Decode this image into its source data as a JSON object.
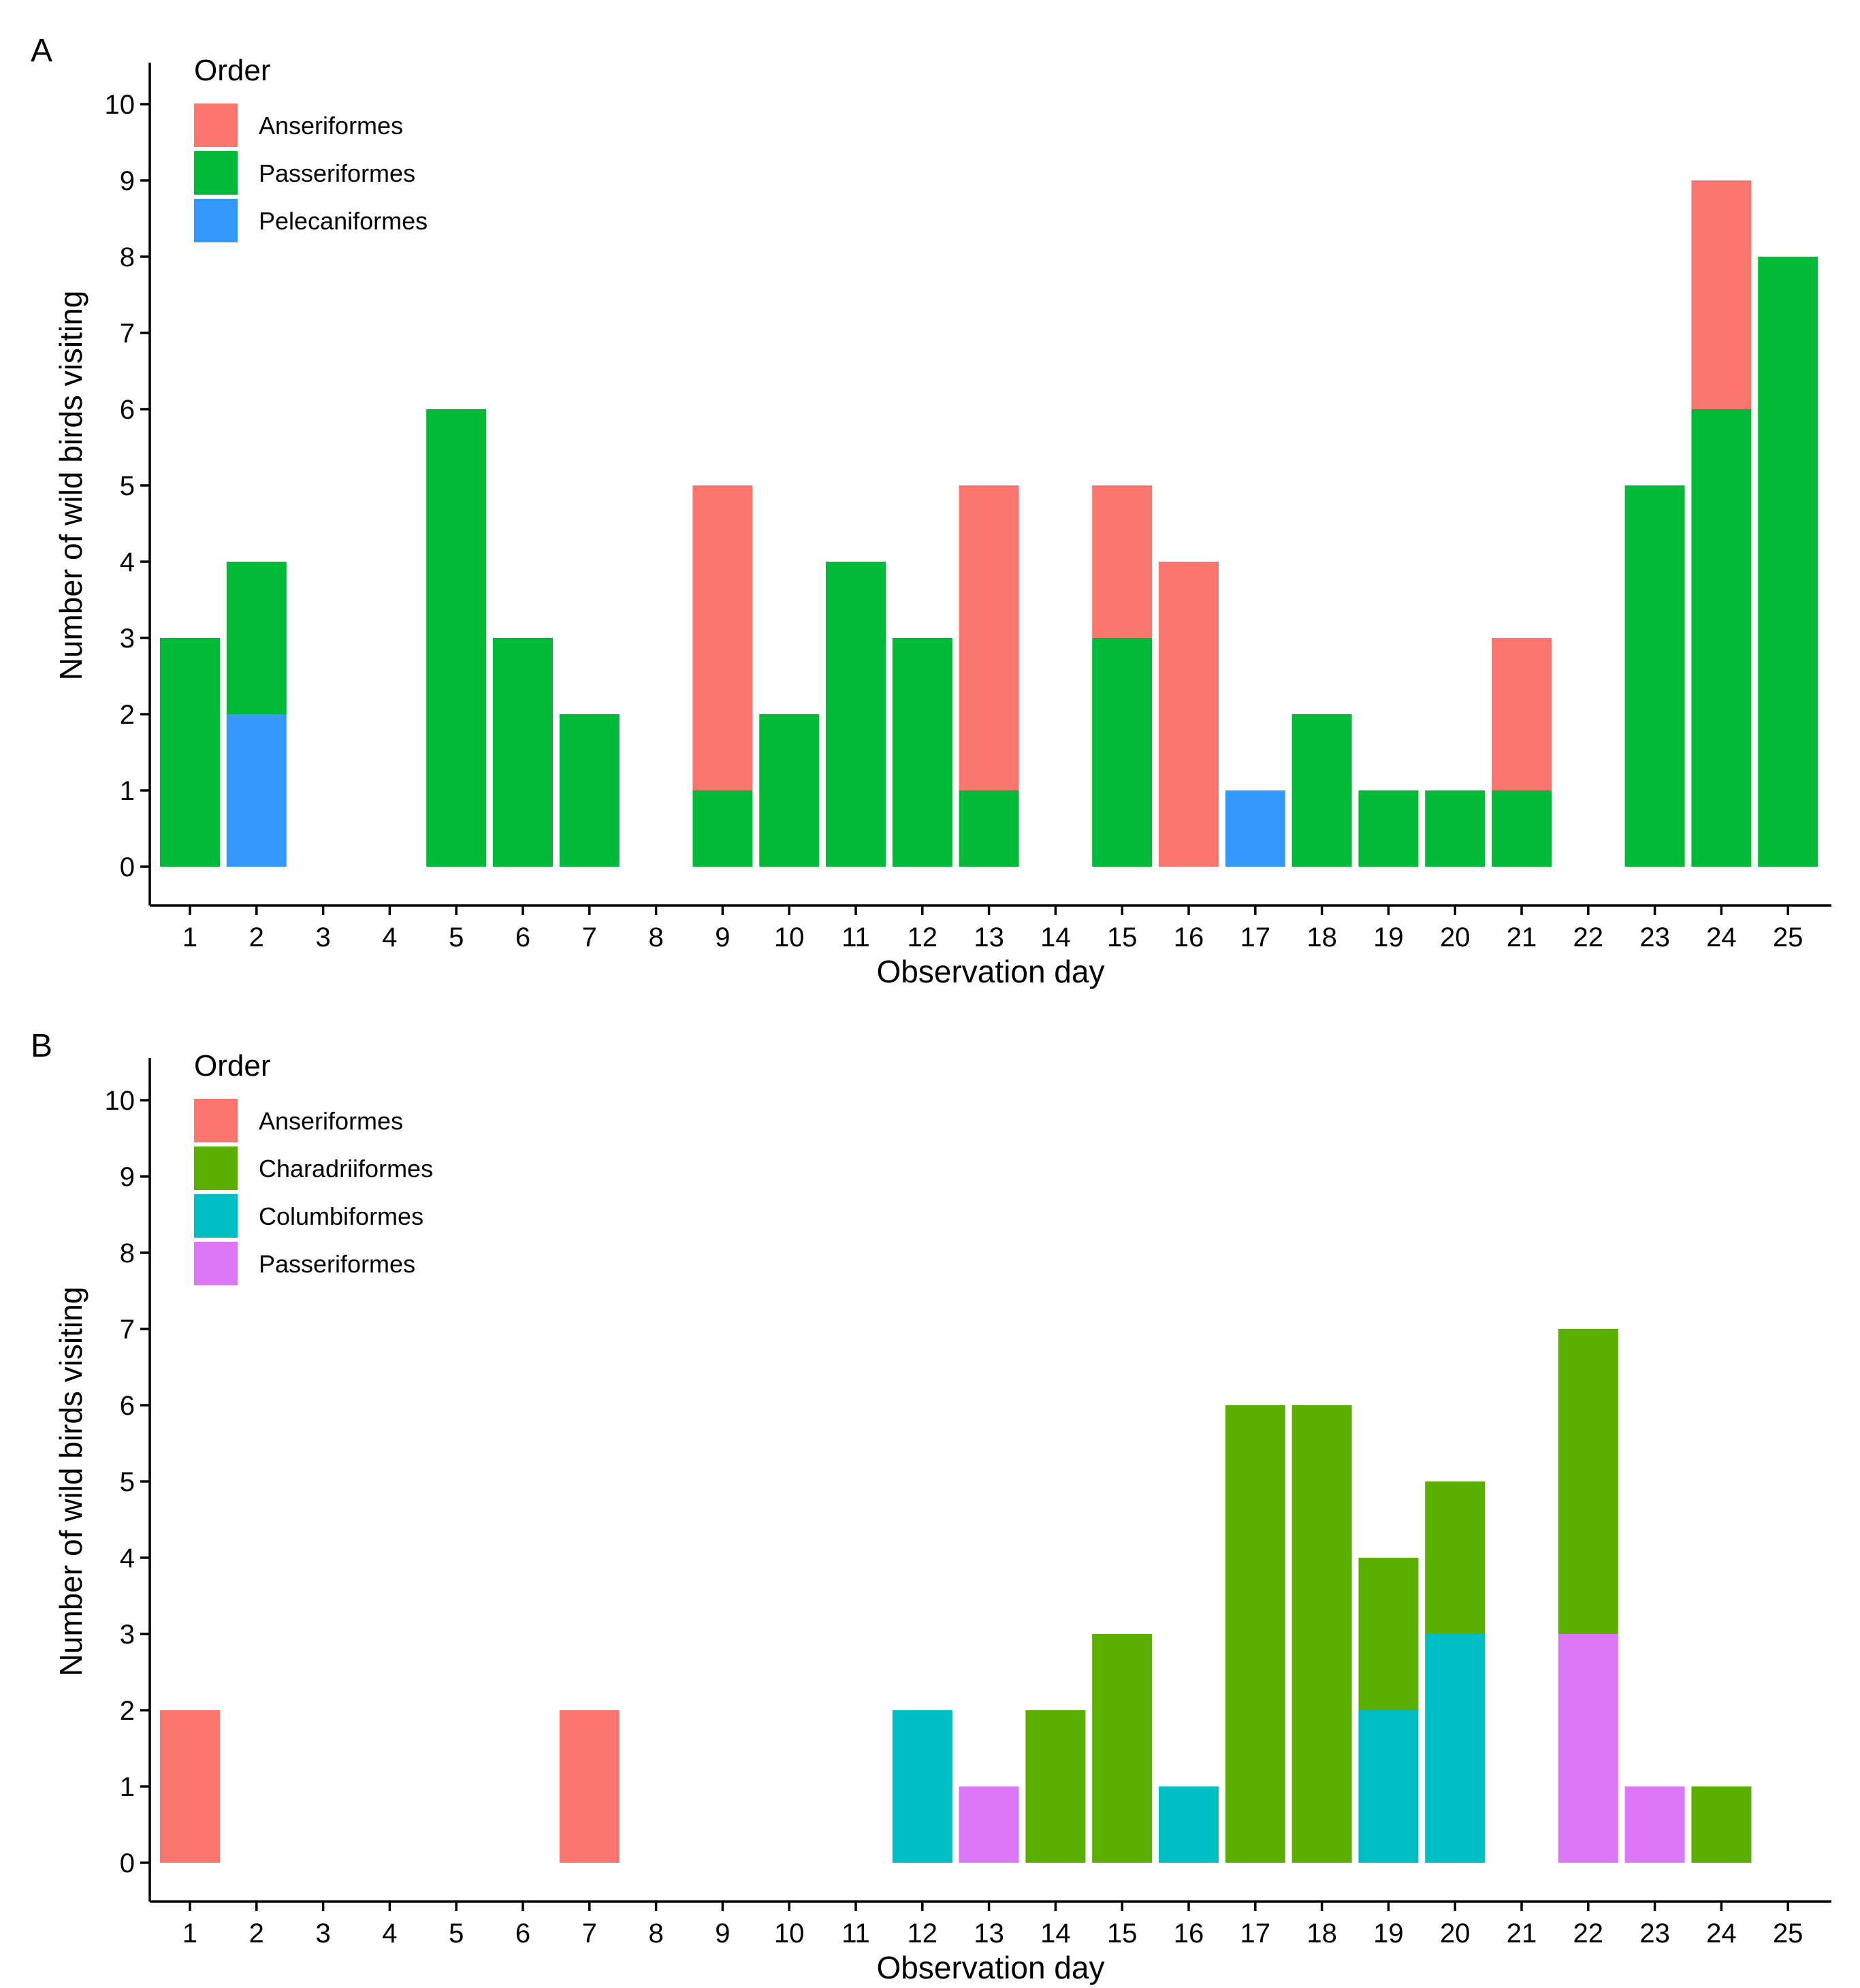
{
  "chart_data": [
    {
      "type": "bar",
      "stacked": true,
      "panel": "A",
      "xlabel": "Observation day",
      "ylabel": "Number of wild birds visiting",
      "ylim": [
        0,
        10
      ],
      "yticks": [
        0,
        1,
        2,
        3,
        4,
        5,
        6,
        7,
        8,
        9,
        10
      ],
      "categories": [
        "1",
        "2",
        "3",
        "4",
        "5",
        "6",
        "7",
        "8",
        "9",
        "10",
        "11",
        "12",
        "13",
        "14",
        "15",
        "16",
        "17",
        "18",
        "19",
        "20",
        "21",
        "22",
        "23",
        "24",
        "25"
      ],
      "legend": {
        "title": "Order",
        "placement": "top-left"
      },
      "series": [
        {
          "name": "Anseriformes",
          "color": "#F8766D",
          "values": [
            0,
            0,
            0,
            0,
            0,
            0,
            0,
            0,
            4,
            0,
            0,
            0,
            4,
            0,
            2,
            4,
            0,
            0,
            0,
            0,
            2,
            0,
            0,
            3,
            0
          ]
        },
        {
          "name": "Passeriformes",
          "color": "#00BA38",
          "values": [
            3,
            2,
            0,
            0,
            6,
            3,
            2,
            0,
            1,
            2,
            4,
            3,
            1,
            0,
            3,
            0,
            0,
            2,
            1,
            1,
            1,
            0,
            5,
            6,
            8
          ]
        },
        {
          "name": "Pelecaniformes",
          "color": "#3399FF",
          "values": [
            0,
            2,
            0,
            0,
            0,
            0,
            0,
            0,
            0,
            0,
            0,
            0,
            0,
            0,
            0,
            0,
            1,
            0,
            0,
            0,
            0,
            0,
            0,
            0,
            0
          ]
        }
      ],
      "stack_order_bottom_to_top": [
        "Pelecaniformes",
        "Passeriformes",
        "Anseriformes"
      ]
    },
    {
      "type": "bar",
      "stacked": true,
      "panel": "B",
      "xlabel": "Observation day",
      "ylabel": "Number of wild birds visiting",
      "ylim": [
        0,
        10
      ],
      "yticks": [
        0,
        1,
        2,
        3,
        4,
        5,
        6,
        7,
        8,
        9,
        10
      ],
      "categories": [
        "1",
        "2",
        "3",
        "4",
        "5",
        "6",
        "7",
        "8",
        "9",
        "10",
        "11",
        "12",
        "13",
        "14",
        "15",
        "16",
        "17",
        "18",
        "19",
        "20",
        "21",
        "22",
        "23",
        "24",
        "25"
      ],
      "legend": {
        "title": "Order",
        "placement": "top-left"
      },
      "series": [
        {
          "name": "Anseriformes",
          "color": "#F8766D",
          "values": [
            2,
            0,
            0,
            0,
            0,
            0,
            2,
            0,
            0,
            0,
            0,
            0,
            0,
            0,
            0,
            0,
            0,
            0,
            0,
            0,
            0,
            0,
            0,
            0,
            0
          ]
        },
        {
          "name": "Charadriiformes",
          "color": "#5BAF00",
          "values": [
            0,
            0,
            0,
            0,
            0,
            0,
            0,
            0,
            0,
            0,
            0,
            0,
            0,
            2,
            3,
            0,
            6,
            6,
            2,
            2,
            0,
            4,
            0,
            1,
            0
          ]
        },
        {
          "name": "Columbiformes",
          "color": "#00BFC4",
          "values": [
            0,
            0,
            0,
            0,
            0,
            0,
            0,
            0,
            0,
            0,
            0,
            2,
            0,
            0,
            0,
            1,
            0,
            0,
            2,
            3,
            0,
            0,
            0,
            0,
            0
          ]
        },
        {
          "name": "Passeriformes",
          "color": "#DC78F8",
          "values": [
            0,
            0,
            0,
            0,
            0,
            0,
            0,
            0,
            0,
            0,
            0,
            0,
            1,
            0,
            0,
            0,
            0,
            0,
            0,
            0,
            0,
            3,
            1,
            0,
            0
          ]
        }
      ],
      "stack_order_bottom_to_top": [
        "Passeriformes",
        "Columbiformes",
        "Charadriiformes",
        "Anseriformes"
      ]
    }
  ]
}
